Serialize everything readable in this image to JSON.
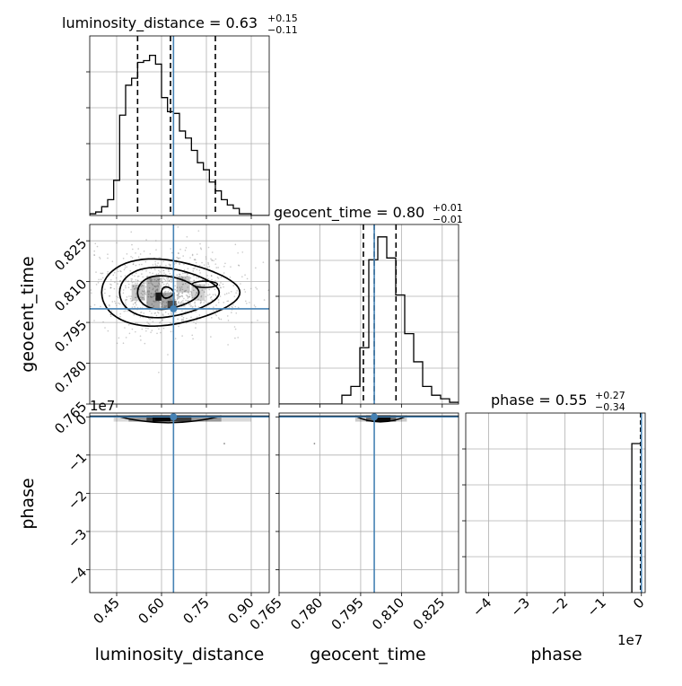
{
  "chart_data": {
    "type": "corner",
    "parameters": [
      "luminosity_distance",
      "geocent_time",
      "phase"
    ],
    "titles": [
      {
        "base": "luminosity_distance = 0.63",
        "plus": "+0.15",
        "minus": "−0.11"
      },
      {
        "base": "geocent_time = 0.80",
        "plus": "+0.01",
        "minus": "−0.01"
      },
      {
        "base": "phase = 0.55",
        "plus": "+0.27",
        "minus": "−0.34"
      }
    ],
    "colors": {
      "truth": "#4682b4",
      "hist": "#000000",
      "grid": "#b0b0b0",
      "points": "#888888"
    },
    "axes": {
      "luminosity_distance": {
        "range": [
          0.36,
          0.96
        ],
        "ticks": [
          0.45,
          0.6,
          0.75,
          0.9
        ],
        "tick_labels": [
          "0.45",
          "0.60",
          "0.75",
          "0.90"
        ]
      },
      "geocent_time": {
        "range": [
          0.765,
          0.831
        ],
        "ticks": [
          0.765,
          0.78,
          0.795,
          0.81,
          0.825
        ],
        "tick_labels": [
          "0.765",
          "0.780",
          "0.795",
          "0.810",
          "0.825"
        ]
      },
      "phase": {
        "range": [
          -4.6,
          0.1
        ],
        "ticks": [
          -4,
          -3,
          -2,
          -1,
          0
        ],
        "tick_labels": [
          "−4",
          "−3",
          "−2",
          "−1",
          "0"
        ],
        "offset_text": "1e7"
      }
    },
    "truths": {
      "luminosity_distance": 0.64,
      "geocent_time": 0.8,
      "phase": 0
    },
    "quantiles": {
      "luminosity_distance": [
        0.52,
        0.63,
        0.78
      ],
      "geocent_time": [
        0.796,
        0.8,
        0.808
      ]
    },
    "hist_luminosity_distance": {
      "bin_start": 0.36,
      "bin_width": 0.02,
      "counts": [
        0.01,
        0.02,
        0.05,
        0.09,
        0.2,
        0.57,
        0.74,
        0.78,
        0.87,
        0.88,
        0.91,
        0.86,
        0.67,
        0.59,
        0.58,
        0.48,
        0.44,
        0.37,
        0.3,
        0.26,
        0.19,
        0.14,
        0.09,
        0.06,
        0.04,
        0.01,
        0.01,
        0.0,
        0.0,
        0.0
      ]
    },
    "hist_geocent_time": {
      "bin_start": 0.765,
      "bin_width": 0.0033,
      "counts": [
        0.0,
        0.0,
        0.0,
        0.0,
        0.0,
        0.0,
        0.0,
        0.05,
        0.1,
        0.32,
        0.82,
        0.95,
        0.83,
        0.62,
        0.4,
        0.24,
        0.1,
        0.05,
        0.03,
        0.01
      ]
    },
    "hist_phase": {
      "edges": [
        -0.25,
        0
      ],
      "counts": [
        0.83
      ]
    },
    "contour_luminosity_distance_vs_geocent_time": {
      "center": [
        0.62,
        0.807
      ],
      "levels": [
        {
          "half_width": [
            0.22,
            0.012
          ],
          "right_bulge": 0.1
        },
        {
          "half_width": [
            0.16,
            0.009
          ],
          "right_bulge": 0.08
        },
        {
          "half_width": [
            0.1,
            0.006
          ],
          "right_bulge": 0.05
        },
        {
          "half_width": [
            0.02,
            0.002
          ],
          "right_bulge": 0
        }
      ],
      "peak": [
        0.585,
        0.804
      ]
    }
  },
  "labels": {
    "x0": "luminosity_distance",
    "x1": "geocent_time",
    "x2": "phase",
    "y1": "geocent_time",
    "y2": "phase",
    "offset_y_row2": "1e7",
    "offset_x_col2": "1e7"
  }
}
